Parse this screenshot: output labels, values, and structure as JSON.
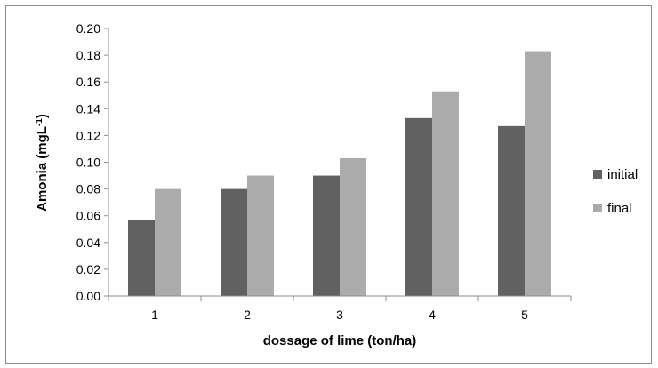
{
  "chart_data": {
    "type": "bar",
    "title": "",
    "xlabel": "dossage of lime (ton/ha)",
    "ylabel_main": "Amonia (mgL",
    "ylabel_sup": "-1",
    "ylabel_close": ")",
    "categories": [
      "1",
      "2",
      "3",
      "4",
      "5"
    ],
    "series": [
      {
        "name": "initial",
        "color": "#616161",
        "values": [
          0.057,
          0.08,
          0.09,
          0.133,
          0.127
        ]
      },
      {
        "name": "final",
        "color": "#ababab",
        "values": [
          0.08,
          0.09,
          0.103,
          0.153,
          0.183
        ]
      }
    ],
    "ylim": [
      0,
      0.2
    ],
    "yticks": [
      "0.00",
      "0.02",
      "0.04",
      "0.06",
      "0.08",
      "0.10",
      "0.12",
      "0.14",
      "0.16",
      "0.18",
      "0.20"
    ],
    "grid": false,
    "legend_position": "right"
  }
}
